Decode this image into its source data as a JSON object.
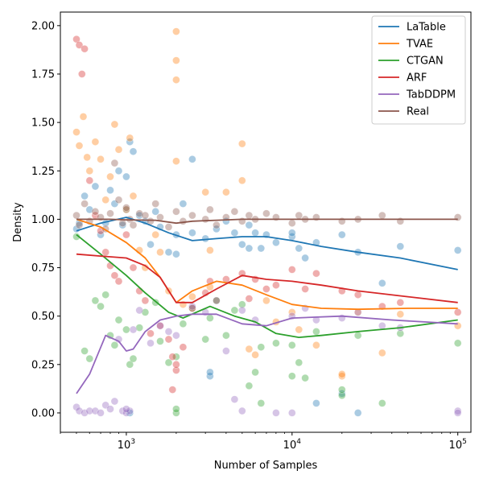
{
  "chart_data": {
    "type": "scatter",
    "title": "",
    "xlabel": "Number of Samples",
    "ylabel": "Density",
    "xscale": "log",
    "xlim": [
      400,
      120000
    ],
    "ylim": [
      -0.1,
      2.07
    ],
    "x_ticks": [
      {
        "value": 1000,
        "base": "10",
        "exp": "3"
      },
      {
        "value": 10000,
        "base": "10",
        "exp": "4"
      },
      {
        "value": 100000,
        "base": "10",
        "exp": "5"
      }
    ],
    "y_ticks": [
      "0.00",
      "0.25",
      "0.50",
      "0.75",
      "1.00",
      "1.25",
      "1.50",
      "1.75",
      "2.00"
    ],
    "legend_position": "top-right",
    "grid": false,
    "series": [
      {
        "name": "LaTable",
        "color": "#1f77b4",
        "trend_x": [
          500,
          700,
          1000,
          1300,
          1800,
          2500,
          3500,
          5000,
          7000,
          10000,
          15000,
          25000,
          45000,
          100000
        ],
        "trend_y": [
          0.94,
          0.98,
          1.01,
          0.98,
          0.93,
          0.89,
          0.9,
          0.91,
          0.91,
          0.89,
          0.86,
          0.83,
          0.8,
          0.74
        ],
        "points_x": [
          500,
          520,
          560,
          600,
          650,
          700,
          750,
          800,
          850,
          900,
          950,
          1000,
          1050,
          1100,
          1200,
          1300,
          1400,
          1500,
          1600,
          1800,
          2000,
          2200,
          2500,
          2500,
          3000,
          3200,
          3500,
          4000,
          4500,
          5000,
          5500,
          6000,
          6500,
          7000,
          8000,
          10000,
          11000,
          12000,
          14000,
          20000,
          25000,
          35000,
          45000,
          100000,
          20000,
          25000,
          14000,
          1050,
          1000,
          2000,
          3200,
          5500,
          10000
        ],
        "points_y": [
          0.95,
          0.98,
          1.12,
          1.05,
          1.17,
          0.92,
          0.98,
          1.15,
          1.08,
          1.25,
          0.97,
          1.05,
          1.4,
          1.35,
          1.02,
          0.99,
          0.87,
          1.04,
          0.96,
          0.83,
          0.92,
          1.08,
          0.93,
          1.31,
          0.9,
          0.19,
          0.95,
          0.99,
          0.93,
          0.87,
          0.97,
          0.93,
          0.85,
          0.92,
          0.88,
          0.91,
          0.85,
          0.8,
          0.05,
          0.92,
          0.0,
          0.67,
          0.86,
          0.84,
          0.1,
          0.83,
          0.88,
          0.0,
          1.22,
          0.82,
          0.21,
          0.85,
          0.93
        ]
      },
      {
        "name": "TVAE",
        "color": "#ff7f0e",
        "trend_x": [
          500,
          700,
          1000,
          1300,
          1600,
          2000,
          2500,
          3500,
          5000,
          7000,
          10000,
          15000,
          25000,
          50000,
          100000
        ],
        "trend_y": [
          1.0,
          0.96,
          0.88,
          0.8,
          0.7,
          0.57,
          0.63,
          0.68,
          0.66,
          0.61,
          0.56,
          0.54,
          0.535,
          0.54,
          0.54
        ],
        "points_x": [
          500,
          520,
          550,
          580,
          600,
          650,
          700,
          750,
          800,
          850,
          900,
          1000,
          1050,
          1100,
          1200,
          1300,
          1500,
          1600,
          1800,
          2000,
          2000,
          2200,
          2500,
          3000,
          3200,
          3500,
          4000,
          5000,
          5500,
          6000,
          7000,
          8000,
          10000,
          11000,
          14000,
          20000,
          25000,
          35000,
          45000,
          100000,
          2000,
          2000,
          3200,
          5000,
          20000
        ],
        "points_y": [
          1.45,
          1.38,
          1.53,
          1.32,
          1.25,
          1.4,
          1.31,
          1.1,
          1.22,
          1.49,
          1.36,
          1.05,
          1.42,
          1.12,
          0.84,
          0.75,
          0.92,
          0.83,
          0.63,
          1.97,
          1.82,
          0.56,
          0.6,
          1.14,
          0.65,
          0.58,
          1.14,
          1.39,
          0.33,
          0.3,
          0.58,
          0.47,
          0.52,
          0.43,
          0.35,
          0.19,
          0.52,
          0.31,
          0.51,
          0.45,
          1.72,
          1.3,
          0.84,
          1.2,
          0.2
        ]
      },
      {
        "name": "CTGAN",
        "color": "#2ca02c",
        "trend_x": [
          500,
          700,
          1000,
          1300,
          1800,
          2200,
          3200,
          4500,
          6000,
          8000,
          11000,
          15000,
          25000,
          45000,
          100000
        ],
        "trend_y": [
          0.92,
          0.82,
          0.71,
          0.62,
          0.52,
          0.49,
          0.55,
          0.5,
          0.47,
          0.41,
          0.39,
          0.4,
          0.42,
          0.44,
          0.48
        ],
        "points_x": [
          500,
          560,
          600,
          650,
          700,
          750,
          800,
          850,
          900,
          1000,
          1050,
          1100,
          1200,
          1300,
          1500,
          1600,
          1800,
          2000,
          2200,
          2500,
          3000,
          3200,
          3500,
          4000,
          4500,
          5000,
          5500,
          6000,
          6500,
          8000,
          10000,
          11000,
          12000,
          14000,
          20000,
          25000,
          35000,
          45000,
          100000,
          2000,
          2000,
          6500,
          10000,
          20000
        ],
        "points_y": [
          0.91,
          0.32,
          0.28,
          0.58,
          0.55,
          0.61,
          0.4,
          0.35,
          0.48,
          0.43,
          0.25,
          0.28,
          0.44,
          0.52,
          0.57,
          0.37,
          0.26,
          0.29,
          0.46,
          0.54,
          0.38,
          0.49,
          0.58,
          0.4,
          0.53,
          0.56,
          0.14,
          0.21,
          0.34,
          0.36,
          0.35,
          0.26,
          0.18,
          0.42,
          0.09,
          0.4,
          0.05,
          0.41,
          0.36,
          0.0,
          0.02,
          0.05,
          0.19,
          0.12
        ]
      },
      {
        "name": "ARF",
        "color": "#d62728",
        "trend_x": [
          500,
          700,
          1000,
          1300,
          1600,
          2000,
          2500,
          3500,
          5000,
          7000,
          10000,
          15000,
          25000,
          50000,
          100000
        ],
        "trend_y": [
          0.82,
          0.81,
          0.8,
          0.76,
          0.7,
          0.57,
          0.57,
          0.64,
          0.71,
          0.69,
          0.68,
          0.66,
          0.63,
          0.6,
          0.57
        ],
        "points_x": [
          500,
          520,
          540,
          560,
          600,
          650,
          700,
          750,
          800,
          850,
          900,
          1000,
          1100,
          1200,
          1300,
          1400,
          1600,
          1800,
          1900,
          2000,
          2200,
          2500,
          3000,
          3200,
          4000,
          5000,
          5500,
          6000,
          7000,
          8000,
          10000,
          12000,
          14000,
          20000,
          25000,
          35000,
          45000,
          100000,
          1900,
          2000
        ],
        "points_y": [
          1.93,
          1.9,
          1.75,
          1.88,
          1.2,
          1.02,
          0.94,
          0.83,
          0.76,
          0.71,
          0.68,
          0.92,
          0.75,
          0.63,
          0.58,
          0.41,
          0.45,
          0.38,
          0.29,
          0.22,
          0.34,
          0.54,
          0.62,
          0.68,
          0.69,
          0.72,
          0.59,
          0.69,
          0.64,
          0.66,
          0.74,
          0.64,
          0.72,
          0.63,
          0.61,
          0.55,
          0.57,
          0.52,
          0.12,
          0.25
        ]
      },
      {
        "name": "TabDDPM",
        "color": "#9467bd",
        "trend_x": [
          500,
          600,
          750,
          900,
          1000,
          1100,
          1300,
          1600,
          2000,
          2500,
          3500,
          5000,
          7000,
          10000,
          20000,
          40000,
          100000
        ],
        "trend_y": [
          0.1,
          0.2,
          0.4,
          0.37,
          0.32,
          0.33,
          0.42,
          0.48,
          0.5,
          0.51,
          0.51,
          0.46,
          0.45,
          0.49,
          0.5,
          0.48,
          0.46
        ],
        "points_x": [
          500,
          520,
          560,
          600,
          650,
          700,
          750,
          800,
          850,
          900,
          950,
          1000,
          1050,
          1100,
          1200,
          1400,
          1600,
          1800,
          2000,
          2500,
          3000,
          3500,
          4000,
          4500,
          5000,
          6000,
          8000,
          10000,
          12000,
          14000,
          20000,
          25000,
          35000,
          45000,
          100000,
          1000,
          5000,
          10000,
          100000
        ],
        "points_y": [
          0.03,
          0.01,
          0.0,
          0.01,
          0.01,
          0.0,
          0.04,
          0.02,
          0.06,
          0.38,
          0.01,
          0.0,
          0.01,
          0.43,
          0.53,
          0.36,
          0.45,
          0.42,
          0.4,
          0.55,
          0.52,
          0.58,
          0.32,
          0.07,
          0.01,
          0.48,
          0.0,
          0.0,
          0.54,
          0.48,
          0.49,
          0.52,
          0.45,
          0.44,
          0.01,
          0.02,
          0.53,
          0.5,
          0.0
        ]
      },
      {
        "name": "Real",
        "color": "#8c564b",
        "trend_x": [
          500,
          800,
          1000,
          1500,
          2000,
          2500,
          3500,
          5000,
          7000,
          10000,
          20000,
          50000,
          100000
        ],
        "trend_y": [
          1.0,
          1.0,
          0.997,
          0.995,
          0.98,
          0.99,
          0.995,
          1.0,
          1.0,
          1.0,
          1.0,
          1.0,
          1.0
        ],
        "points_x": [
          500,
          520,
          560,
          600,
          650,
          700,
          750,
          800,
          850,
          900,
          950,
          1000,
          1050,
          1100,
          1200,
          1300,
          1400,
          1500,
          1600,
          1800,
          2000,
          2200,
          2500,
          3000,
          3200,
          3500,
          4000,
          4500,
          5000,
          5500,
          6000,
          7000,
          8000,
          10000,
          11000,
          12000,
          14000,
          20000,
          25000,
          35000,
          45000,
          100000
        ],
        "points_y": [
          1.02,
          0.97,
          1.08,
          0.99,
          1.04,
          1.01,
          0.95,
          1.03,
          1.29,
          1.1,
          0.98,
          1.06,
          1.0,
          0.97,
          1.03,
          1.02,
          0.99,
          1.08,
          1.01,
          0.96,
          1.04,
          0.99,
          1.02,
          1.0,
          1.05,
          0.97,
          1.01,
          1.04,
          0.99,
          1.02,
          1.0,
          1.03,
          1.01,
          0.98,
          1.02,
          1.0,
          1.01,
          0.99,
          1.0,
          1.02,
          0.99,
          1.01
        ]
      }
    ]
  }
}
